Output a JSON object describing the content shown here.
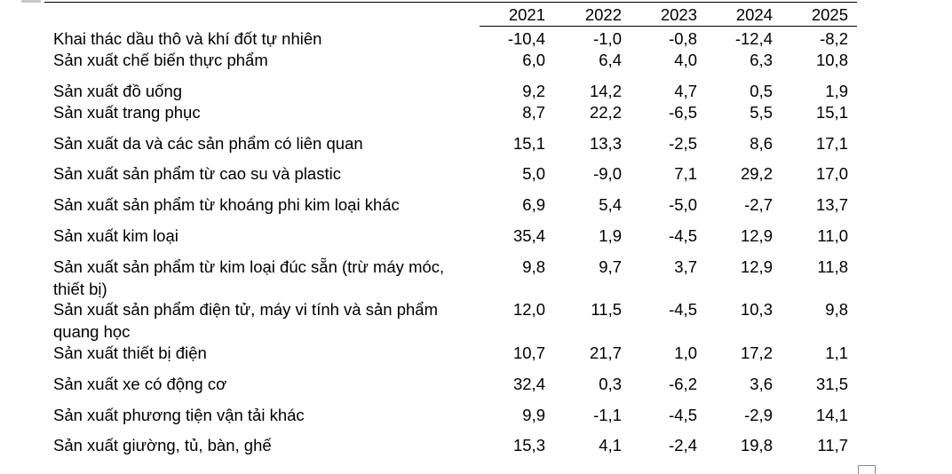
{
  "table": {
    "years": [
      "2021",
      "2022",
      "2023",
      "2024",
      "2025"
    ],
    "rows": [
      {
        "label": "Khai thác dầu thô và khí đốt tự nhiên",
        "values": [
          "-10,4",
          "-1,0",
          "-0,8",
          "-12,4",
          "-8,2"
        ]
      },
      {
        "label": "Sản xuất chế biến thực phẩm",
        "values": [
          "6,0",
          "6,4",
          "4,0",
          "6,3",
          "10,8"
        ]
      },
      {
        "label": "Sản xuất đồ uống",
        "values": [
          "9,2",
          "14,2",
          "4,7",
          "0,5",
          "1,9"
        ]
      },
      {
        "label": "Sản xuất trang phục",
        "values": [
          "8,7",
          "22,2",
          "-6,5",
          "5,5",
          "15,1"
        ]
      },
      {
        "label": "Sản xuất da và các sản phẩm có liên quan",
        "values": [
          "15,1",
          "13,3",
          "-2,5",
          "8,6",
          "17,1"
        ]
      },
      {
        "label": "Sản xuất sản phẩm từ cao su và plastic",
        "values": [
          "5,0",
          "-9,0",
          "7,1",
          "29,2",
          "17,0"
        ]
      },
      {
        "label": "Sản xuất sản phẩm từ khoáng phi kim loại khác",
        "values": [
          "6,9",
          "5,4",
          "-5,0",
          "-2,7",
          "13,7"
        ]
      },
      {
        "label": "Sản xuất kim loại",
        "values": [
          "35,4",
          "1,9",
          "-4,5",
          "12,9",
          "11,0"
        ]
      },
      {
        "label": "Sản xuất sản phẩm từ kim loại đúc sẵn (trừ máy móc, thiết bị)",
        "values": [
          "9,8",
          "9,7",
          "3,7",
          "12,9",
          "11,8"
        ]
      },
      {
        "label": "Sản xuất sản phẩm điện tử, máy vi tính và sản phẩm quang học",
        "values": [
          "12,0",
          "11,5",
          "-4,5",
          "10,3",
          "9,8"
        ]
      },
      {
        "label": "Sản xuất thiết bị điện",
        "values": [
          "10,7",
          "21,7",
          "1,0",
          "17,2",
          "1,1"
        ]
      },
      {
        "label": "Sản xuất xe có động cơ",
        "values": [
          "32,4",
          "0,3",
          "-6,2",
          "3,6",
          "31,5"
        ]
      },
      {
        "label": "Sản xuất phương tiện vận tải khác",
        "values": [
          "9,9",
          "-1,1",
          "-4,5",
          "-2,9",
          "14,1"
        ]
      },
      {
        "label": "Sản xuất giường, tủ, bàn, ghế",
        "values": [
          "15,3",
          "4,1",
          "-2,4",
          "19,8",
          "11,7"
        ]
      }
    ]
  }
}
